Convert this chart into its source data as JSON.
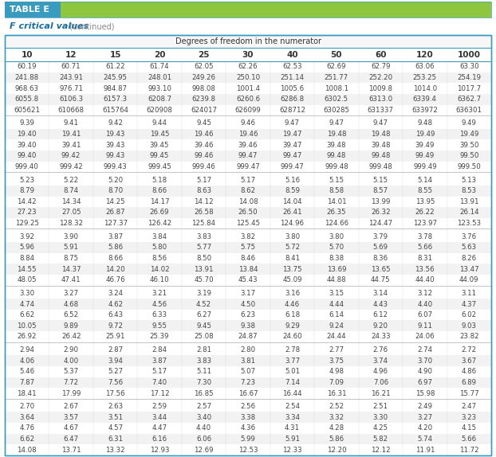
{
  "title_box": "TABLE E",
  "subtitle_italic": "F critical values",
  "subtitle_normal": " (continued)",
  "col_header_title": "Degrees of freedom in the numerator",
  "columns": [
    "10",
    "12",
    "15",
    "20",
    "25",
    "30",
    "40",
    "50",
    "60",
    "120",
    "1000"
  ],
  "row_groups": [
    [
      [
        "60.19",
        "60.71",
        "61.22",
        "61.74",
        "62.05",
        "62.26",
        "62.53",
        "62.69",
        "62.79",
        "63.06",
        "63.30"
      ],
      [
        "241.88",
        "243.91",
        "245.95",
        "248.01",
        "249.26",
        "250.10",
        "251.14",
        "251.77",
        "252.20",
        "253.25",
        "254.19"
      ],
      [
        "968.63",
        "976.71",
        "984.87",
        "993.10",
        "998.08",
        "1001.4",
        "1005.6",
        "1008.1",
        "1009.8",
        "1014.0",
        "1017.7"
      ],
      [
        "6055.8",
        "6106.3",
        "6157.3",
        "6208.7",
        "6239.8",
        "6260.6",
        "6286.8",
        "6302.5",
        "6313.0",
        "6339.4",
        "6362.7"
      ],
      [
        "605621",
        "610668",
        "615764",
        "620908",
        "624017",
        "626099",
        "628712",
        "630285",
        "631337",
        "633972",
        "636301"
      ]
    ],
    [
      [
        "9.39",
        "9.41",
        "9.42",
        "9.44",
        "9.45",
        "9.46",
        "9.47",
        "9.47",
        "9.47",
        "9.48",
        "9.49"
      ],
      [
        "19.40",
        "19.41",
        "19.43",
        "19.45",
        "19.46",
        "19.46",
        "19.47",
        "19.48",
        "19.48",
        "19.49",
        "19.49"
      ],
      [
        "39.40",
        "39.41",
        "39.43",
        "39.45",
        "39.46",
        "39.46",
        "39.47",
        "39.48",
        "39.48",
        "39.49",
        "39.50"
      ],
      [
        "99.40",
        "99.42",
        "99.43",
        "99.45",
        "99.46",
        "99.47",
        "99.47",
        "99.48",
        "99.48",
        "99.49",
        "99.50"
      ],
      [
        "999.40",
        "999.42",
        "999.43",
        "999.45",
        "999.46",
        "999.47",
        "999.47",
        "999.48",
        "999.48",
        "999.49",
        "999.50"
      ]
    ],
    [
      [
        "5.23",
        "5.22",
        "5.20",
        "5.18",
        "5.17",
        "5.17",
        "5.16",
        "5.15",
        "5.15",
        "5.14",
        "5.13"
      ],
      [
        "8.79",
        "8.74",
        "8.70",
        "8.66",
        "8.63",
        "8.62",
        "8.59",
        "8.58",
        "8.57",
        "8.55",
        "8.53"
      ],
      [
        "14.42",
        "14.34",
        "14.25",
        "14.17",
        "14.12",
        "14.08",
        "14.04",
        "14.01",
        "13.99",
        "13.95",
        "13.91"
      ],
      [
        "27.23",
        "27.05",
        "26.87",
        "26.69",
        "26.58",
        "26.50",
        "26.41",
        "26.35",
        "26.32",
        "26.22",
        "26.14"
      ],
      [
        "129.25",
        "128.32",
        "127.37",
        "126.42",
        "125.84",
        "125.45",
        "124.96",
        "124.66",
        "124.47",
        "123.97",
        "123.53"
      ]
    ],
    [
      [
        "3.92",
        "3.90",
        "3.87",
        "3.84",
        "3.83",
        "3.82",
        "3.80",
        "3.80",
        "3.79",
        "3.78",
        "3.76"
      ],
      [
        "5.96",
        "5.91",
        "5.86",
        "5.80",
        "5.77",
        "5.75",
        "5.72",
        "5.70",
        "5.69",
        "5.66",
        "5.63"
      ],
      [
        "8.84",
        "8.75",
        "8.66",
        "8.56",
        "8.50",
        "8.46",
        "8.41",
        "8.38",
        "8.36",
        "8.31",
        "8.26"
      ],
      [
        "14.55",
        "14.37",
        "14.20",
        "14.02",
        "13.91",
        "13.84",
        "13.75",
        "13.69",
        "13.65",
        "13.56",
        "13.47"
      ],
      [
        "48.05",
        "47.41",
        "46.76",
        "46.10",
        "45.70",
        "45.43",
        "45.09",
        "44.88",
        "44.75",
        "44.40",
        "44.09"
      ]
    ],
    [
      [
        "3.30",
        "3.27",
        "3.24",
        "3.21",
        "3.19",
        "3.17",
        "3.16",
        "3.15",
        "3.14",
        "3.12",
        "3.11"
      ],
      [
        "4.74",
        "4.68",
        "4.62",
        "4.56",
        "4.52",
        "4.50",
        "4.46",
        "4.44",
        "4.43",
        "4.40",
        "4.37"
      ],
      [
        "6.62",
        "6.52",
        "6.43",
        "6.33",
        "6.27",
        "6.23",
        "6.18",
        "6.14",
        "6.12",
        "6.07",
        "6.02"
      ],
      [
        "10.05",
        "9.89",
        "9.72",
        "9.55",
        "9.45",
        "9.38",
        "9.29",
        "9.24",
        "9.20",
        "9.11",
        "9.03"
      ],
      [
        "26.92",
        "26.42",
        "25.91",
        "25.39",
        "25.08",
        "24.87",
        "24.60",
        "24.44",
        "24.33",
        "24.06",
        "23.82"
      ]
    ],
    [
      [
        "2.94",
        "2.90",
        "2.87",
        "2.84",
        "2.81",
        "2.80",
        "2.78",
        "2.77",
        "2.76",
        "2.74",
        "2.72"
      ],
      [
        "4.06",
        "4.00",
        "3.94",
        "3.87",
        "3.83",
        "3.81",
        "3.77",
        "3.75",
        "3.74",
        "3.70",
        "3.67"
      ],
      [
        "5.46",
        "5.37",
        "5.27",
        "5.17",
        "5.11",
        "5.07",
        "5.01",
        "4.98",
        "4.96",
        "4.90",
        "4.86"
      ],
      [
        "7.87",
        "7.72",
        "7.56",
        "7.40",
        "7.30",
        "7.23",
        "7.14",
        "7.09",
        "7.06",
        "6.97",
        "6.89"
      ],
      [
        "18.41",
        "17.99",
        "17.56",
        "17.12",
        "16.85",
        "16.67",
        "16.44",
        "16.31",
        "16.21",
        "15.98",
        "15.77"
      ]
    ],
    [
      [
        "2.70",
        "2.67",
        "2.63",
        "2.59",
        "2.57",
        "2.56",
        "2.54",
        "2.52",
        "2.51",
        "2.49",
        "2.47"
      ],
      [
        "3.64",
        "3.57",
        "3.51",
        "3.44",
        "3.40",
        "3.38",
        "3.34",
        "3.32",
        "3.30",
        "3.27",
        "3.23"
      ],
      [
        "4.76",
        "4.67",
        "4.57",
        "4.47",
        "4.40",
        "4.36",
        "4.31",
        "4.28",
        "4.25",
        "4.20",
        "4.15"
      ],
      [
        "6.62",
        "6.47",
        "6.31",
        "6.16",
        "6.06",
        "5.99",
        "5.91",
        "5.86",
        "5.82",
        "5.74",
        "5.66"
      ],
      [
        "14.08",
        "13.71",
        "13.32",
        "12.93",
        "12.69",
        "12.53",
        "12.33",
        "12.20",
        "12.12",
        "11.91",
        "11.72"
      ]
    ]
  ],
  "header_teal": "#3a9bbf",
  "header_green_stripe": "#8dc63f",
  "table_border_color": "#3a9bbf",
  "col_header_bg": "#ffffff",
  "dof_row_bg": "#f0f0f0",
  "text_color": "#333333",
  "title_text_color": "#ffffff",
  "subtitle_italic_color": "#1a6e9e",
  "subtitle_normal_color": "#666666",
  "col_num_color": "#333333",
  "data_text_color": "#444444"
}
